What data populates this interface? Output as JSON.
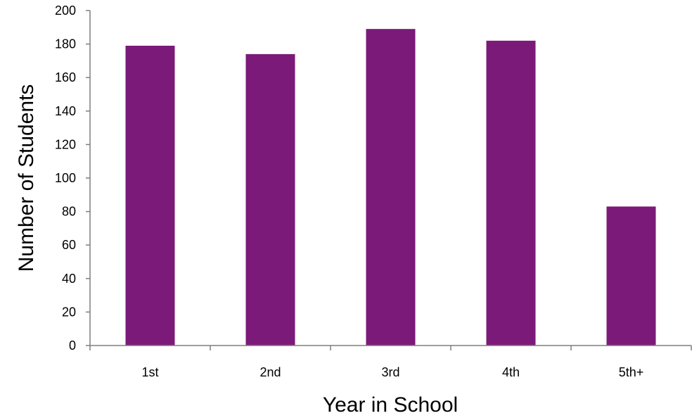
{
  "chart_data": {
    "type": "bar",
    "title": "",
    "xlabel": "Year in School",
    "ylabel": "Number of Students",
    "categories": [
      "1st",
      "2nd",
      "3rd",
      "4th",
      "5th+"
    ],
    "values": [
      179,
      174,
      189,
      182,
      83
    ],
    "ylim": [
      0,
      200
    ],
    "yticks": [
      0,
      20,
      40,
      60,
      80,
      100,
      120,
      140,
      160,
      180,
      200
    ],
    "grid": false,
    "legend": "none",
    "bar_color": "#7B1A78"
  }
}
